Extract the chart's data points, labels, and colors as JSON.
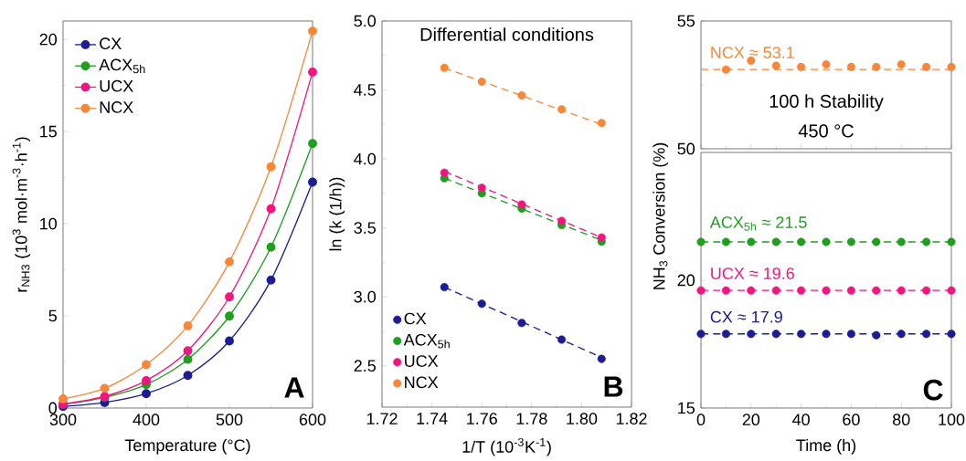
{
  "chart_data": [
    {
      "type": "line",
      "xlabel": "Temperature (°C)",
      "ylabel": "r$_{NH3}$ (10$^{3}$ mol·m$^{-3}$·h$^{-1}$)",
      "x": [
        300,
        350,
        400,
        450,
        500,
        550,
        600
      ],
      "xlim": [
        300,
        600
      ],
      "xticks": [
        300,
        400,
        500,
        600
      ],
      "ylim": [
        0,
        21
      ],
      "yticks": [
        0,
        5,
        10,
        15,
        20
      ],
      "marker": "circle",
      "legend": "top left",
      "annotations": [
        "A"
      ],
      "series": [
        {
          "name": "CX",
          "color": "#1c1c94",
          "values": [
            0.08,
            0.3,
            0.78,
            1.77,
            3.64,
            6.94,
            12.26
          ]
        },
        {
          "name": "ACX$_{5h}$",
          "color": "#1f9e1f",
          "values": [
            0.2,
            0.58,
            1.27,
            2.64,
            4.99,
            8.73,
            14.35
          ]
        },
        {
          "name": "UCX",
          "color": "#f0167f",
          "values": [
            0.21,
            0.63,
            1.49,
            3.11,
            6.03,
            10.81,
            18.23
          ]
        },
        {
          "name": "NCX",
          "color": "#f5873a",
          "values": [
            0.5,
            1.07,
            2.35,
            4.46,
            7.93,
            13.09,
            20.45
          ]
        }
      ]
    },
    {
      "type": "scatter",
      "xlabel": "1/T (10$^{-3}$K$^{-1}$)",
      "ylabel": "ln (k (1/h))",
      "x": [
        1.745,
        1.76,
        1.776,
        1.792,
        1.808
      ],
      "xlim": [
        1.72,
        1.82
      ],
      "xticks": [
        {
          "value": 1.72,
          "label": "1.72"
        },
        {
          "value": 1.74,
          "label": "1.74"
        },
        {
          "value": 1.76,
          "label": "1.76"
        },
        {
          "value": 1.78,
          "label": "1.78"
        },
        {
          "value": 1.8,
          "label": "1.80"
        },
        {
          "value": 1.82,
          "label": "1.82"
        }
      ],
      "ylim": [
        2.2,
        5.0
      ],
      "yticks": [
        2.5,
        {
          "value": 3,
          "label": "3.0"
        },
        3.5,
        {
          "value": 4,
          "label": "4.0"
        },
        4.5,
        {
          "value": 5,
          "label": "5.0"
        }
      ],
      "marker": "circle",
      "legend": "bottom left",
      "annotations": [
        "Differential conditions",
        "B"
      ],
      "series": [
        {
          "name": "CX",
          "color": "#1c1c94",
          "values": [
            3.07,
            2.95,
            2.81,
            2.69,
            2.55
          ]
        },
        {
          "name": "ACX$_{5h}$",
          "color": "#1f9e1f",
          "values": [
            3.86,
            3.75,
            3.64,
            3.52,
            3.4
          ]
        },
        {
          "name": "UCX",
          "color": "#f0167f",
          "values": [
            3.9,
            3.79,
            3.67,
            3.55,
            3.43
          ]
        },
        {
          "name": "NCX",
          "color": "#f5873a",
          "values": [
            4.66,
            4.56,
            4.46,
            4.36,
            4.26
          ]
        },
        {
          "type": "line",
          "color": "#1c1c94",
          "x": [
            1.745,
            1.808
          ],
          "values": [
            3.07,
            2.56
          ],
          "line_style": "dashed",
          "marker": "none"
        },
        {
          "type": "line",
          "color": "#1f9e1f",
          "x": [
            1.745,
            1.808
          ],
          "values": [
            3.86,
            3.41
          ],
          "line_style": "dashed",
          "marker": "none"
        },
        {
          "type": "line",
          "color": "#f0167f",
          "x": [
            1.745,
            1.808
          ],
          "values": [
            3.91,
            3.43
          ],
          "line_style": "dashed",
          "marker": "none"
        },
        {
          "type": "line",
          "color": "#f5873a",
          "x": [
            1.745,
            1.808
          ],
          "values": [
            4.66,
            4.25
          ],
          "line_style": "dashed",
          "marker": "none"
        }
      ]
    },
    {
      "type": "scatter",
      "xlim": [
        0,
        100
      ],
      "xticks": [
        0,
        20,
        40,
        60,
        80,
        100
      ],
      "ylim": [
        50,
        55
      ],
      "yticks": [
        50,
        55
      ],
      "tick_labels": "y",
      "marker": "circle",
      "annotations": [
        "100 h Stability",
        "450 °C"
      ],
      "ref_lines": [
        {
          "axis": "y",
          "value": 53.1,
          "label": "NCX ≈ 53.1",
          "color": "#f5873a",
          "line_style": "dashed"
        }
      ],
      "series": [
        {
          "color": "#f5873a",
          "x": [
            10,
            20,
            30,
            40,
            50,
            60,
            70,
            80,
            90,
            100
          ],
          "values": [
            53.1,
            53.45,
            53.25,
            53.2,
            53.3,
            53.2,
            53.2,
            53.3,
            53.2,
            53.2
          ]
        }
      ]
    },
    {
      "type": "scatter",
      "xlabel": "Time (h)",
      "ylabel": "NH$_{3}$ Conversion (%)",
      "x": [
        0,
        10,
        20,
        30,
        40,
        50,
        60,
        70,
        80,
        90,
        100
      ],
      "xlim": [
        0,
        100
      ],
      "xticks": [
        0,
        20,
        40,
        60,
        80,
        100
      ],
      "ylim": [
        15,
        25
      ],
      "yticks": [
        15,
        20
      ],
      "marker": "circle",
      "annotations": [
        "C"
      ],
      "ref_lines": [
        {
          "axis": "y",
          "value": 21.5,
          "label": "ACX$_{5h}$ ≈ 21.5",
          "color": "#1f9e1f",
          "line_style": "dashed"
        },
        {
          "axis": "y",
          "value": 19.6,
          "label": "UCX ≈ 19.6",
          "color": "#f0167f",
          "line_style": "dashed"
        },
        {
          "axis": "y",
          "value": 17.9,
          "label": "CX ≈ 17.9",
          "color": "#1c1c94",
          "line_style": "dashed"
        }
      ],
      "series": [
        {
          "color": "#1f9e1f",
          "values": [
            21.5,
            21.5,
            21.5,
            21.5,
            21.5,
            21.5,
            21.5,
            21.5,
            21.5,
            21.5,
            21.5
          ]
        },
        {
          "color": "#f0167f",
          "values": [
            19.6,
            19.6,
            19.6,
            19.6,
            19.6,
            19.6,
            19.6,
            19.6,
            19.6,
            19.6,
            19.6
          ]
        },
        {
          "color": "#1c1c94",
          "values": [
            17.9,
            17.9,
            17.9,
            17.9,
            17.9,
            17.9,
            17.9,
            17.85,
            17.9,
            17.9,
            17.9
          ]
        }
      ]
    }
  ]
}
